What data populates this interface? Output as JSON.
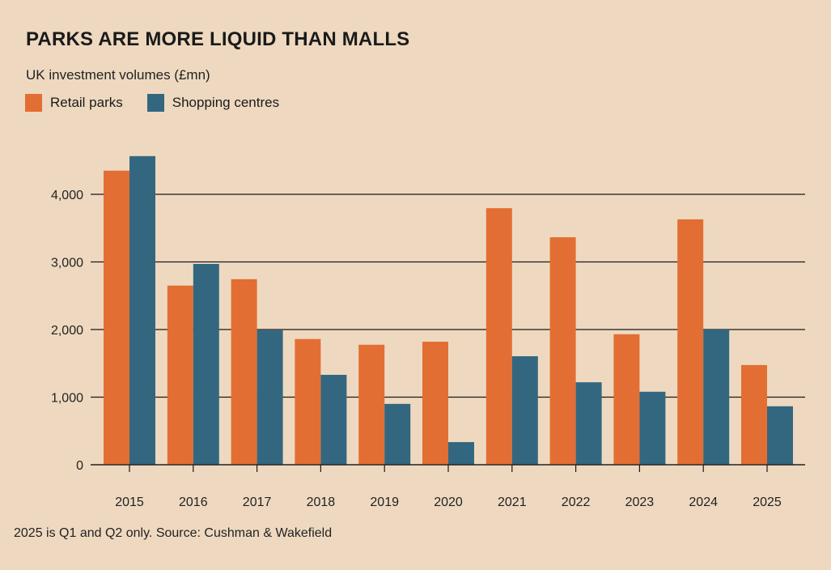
{
  "chart_data": {
    "type": "bar",
    "title": "PARKS ARE MORE LIQUID THAN MALLS",
    "subtitle": "UK investment volumes (£mn)",
    "xlabel": "",
    "ylabel": "",
    "categories": [
      "2015",
      "2016",
      "2017",
      "2018",
      "2019",
      "2020",
      "2021",
      "2022",
      "2023",
      "2024",
      "2025"
    ],
    "series": [
      {
        "name": "Retail parks",
        "color": "#e36e33",
        "values": [
          4350,
          2650,
          2745,
          1860,
          1775,
          1820,
          3795,
          3365,
          1930,
          3630,
          1475
        ]
      },
      {
        "name": "Shopping centres",
        "color": "#33677f",
        "values": [
          4565,
          2970,
          1990,
          1330,
          900,
          335,
          1605,
          1220,
          1080,
          2000,
          865
        ]
      }
    ],
    "ylim": [
      0,
      4600
    ],
    "yticks": [
      0,
      1000,
      2000,
      3000,
      4000
    ],
    "ytick_labels": [
      "0",
      "1,000",
      "2,000",
      "3,000",
      "4,000"
    ],
    "grid": true,
    "legend_position": "top-left",
    "footnote": "2025 is Q1 and Q2 only. Source: Cushman & Wakefield"
  }
}
